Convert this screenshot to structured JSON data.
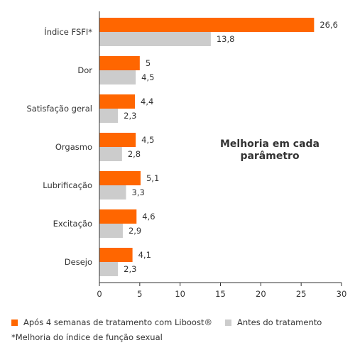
{
  "chart_data": {
    "type": "bar",
    "orientation": "horizontal",
    "categories": [
      "Índice FSFI*",
      "Dor",
      "Satisfação geral",
      "Orgasmo",
      "Lubrificação",
      "Excitação",
      "Desejo"
    ],
    "series": [
      {
        "name": "Após 4 semanas de tratamento com Liboost®",
        "color": "#ff6600",
        "values": [
          26.6,
          5,
          4.4,
          4.5,
          5.1,
          4.6,
          4.1
        ],
        "labels": [
          "26,6",
          "5",
          "4,4",
          "4,5",
          "5,1",
          "4,6",
          "4,1"
        ]
      },
      {
        "name": "Antes do tratamento",
        "color": "#cccccc",
        "values": [
          13.8,
          4.5,
          2.3,
          2.8,
          3.3,
          2.9,
          2.3
        ],
        "labels": [
          "13,8",
          "4,5",
          "2,3",
          "2,8",
          "3,3",
          "2,9",
          "2,3"
        ]
      }
    ],
    "xlim": [
      0,
      30
    ],
    "xticks": [
      0,
      5,
      10,
      15,
      20,
      25,
      30
    ],
    "annotation": [
      "Melhoria em cada",
      "parâmetro"
    ],
    "legend_position": "bottom",
    "footnote": "*Melhoria do índice de função sexual",
    "grid": false
  }
}
